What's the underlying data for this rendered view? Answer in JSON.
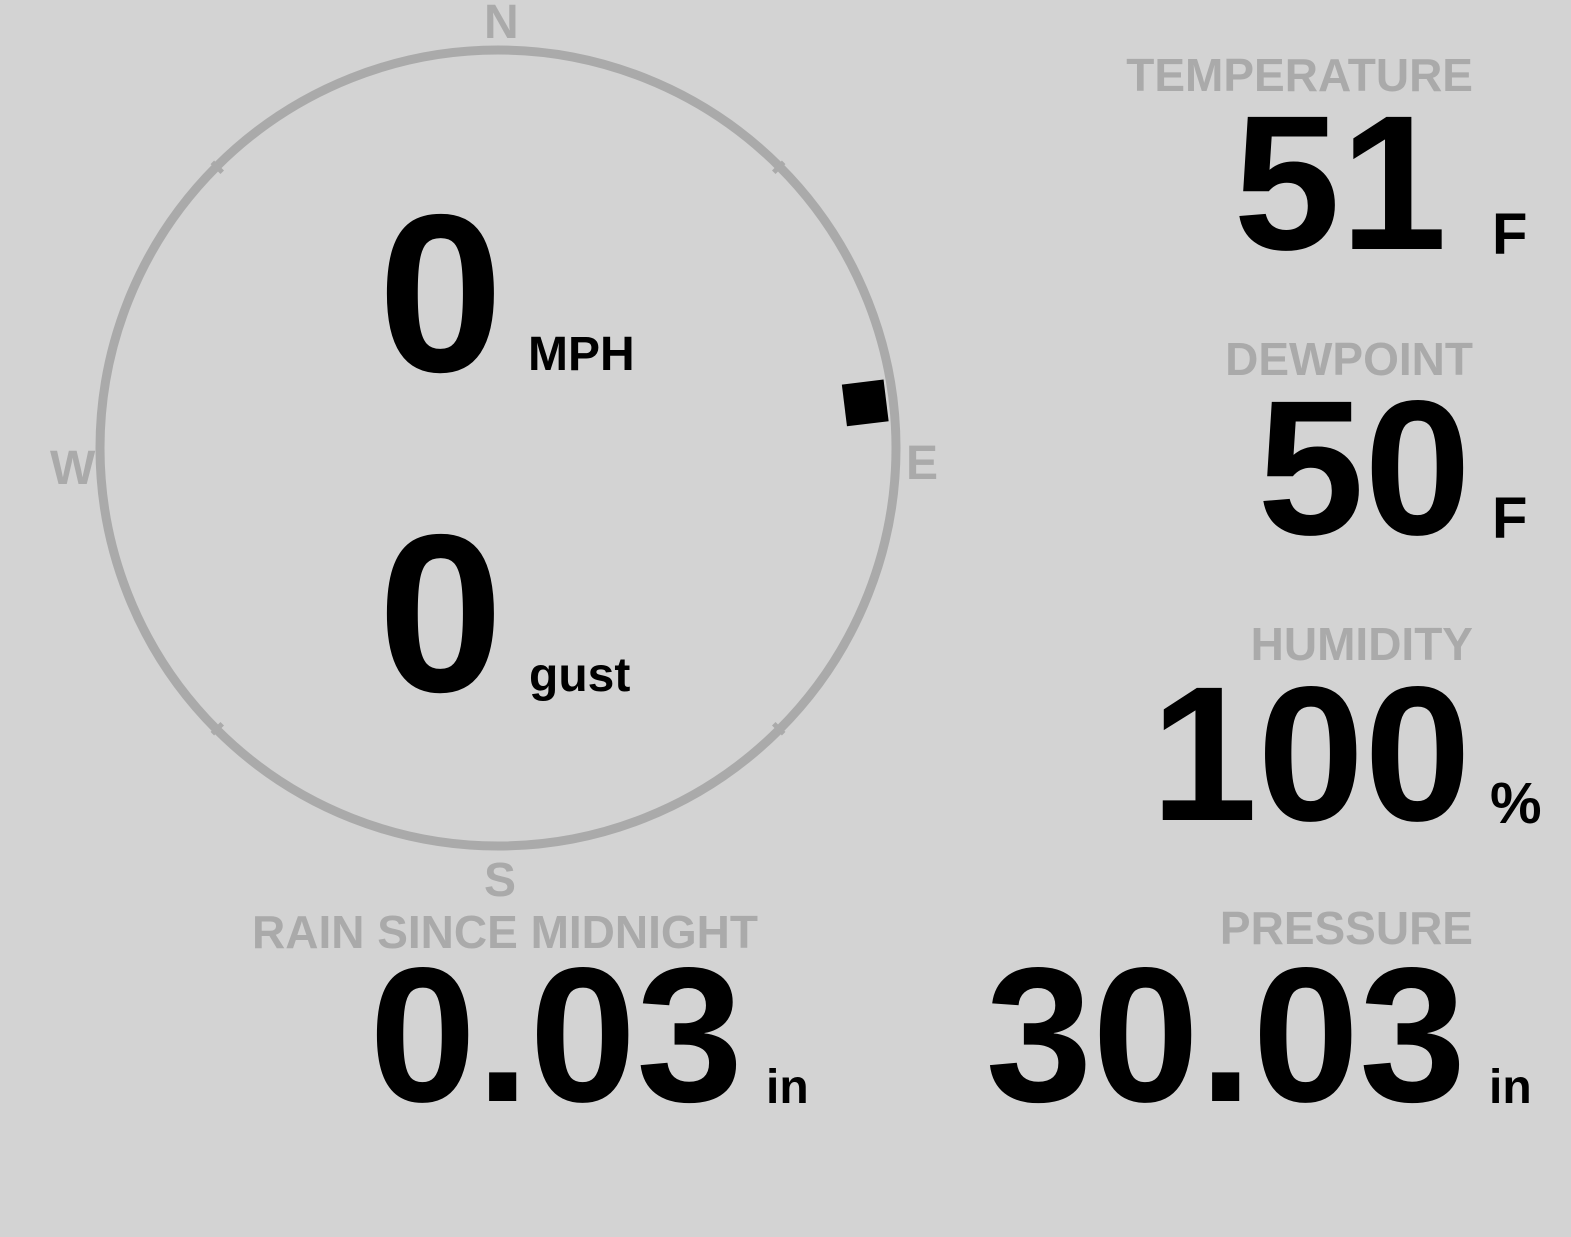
{
  "colors": {
    "background": "#d3d3d3",
    "label": "#aaaaaa",
    "value": "#000000",
    "compass_ring": "#aaaaaa",
    "wind_marker": "#000000"
  },
  "compass": {
    "north": "N",
    "south": "S",
    "east": "E",
    "west": "W",
    "wind_direction_deg": 83
  },
  "wind": {
    "speed": "0",
    "speed_unit": "MPH",
    "gust": "0",
    "gust_label": "gust"
  },
  "temperature": {
    "label": "TEMPERATURE",
    "value": "51",
    "unit": "F"
  },
  "dewpoint": {
    "label": "DEWPOINT",
    "value": "50",
    "unit": "F"
  },
  "humidity": {
    "label": "HUMIDITY",
    "value": "100",
    "unit": "%"
  },
  "rain": {
    "label": "RAIN SINCE MIDNIGHT",
    "value": "0.03",
    "unit": "in"
  },
  "pressure": {
    "label": "PRESSURE",
    "value": "30.03",
    "unit": "in"
  }
}
